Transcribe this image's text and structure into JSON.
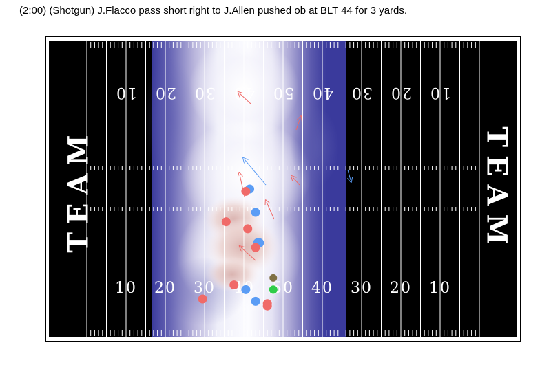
{
  "play_description": "(2:00) (Shotgun) J.Flacco pass short right to J.Allen pushed ob at BLT 44 for 3 yards.",
  "field": {
    "endzone_left_text": "TEAM",
    "endzone_right_text": "TEAM",
    "bottom_yard_numbers": [
      "10",
      "20",
      "30",
      "40",
      "50",
      "40",
      "30",
      "20",
      "10"
    ],
    "top_yard_numbers": [
      "10",
      "20",
      "30",
      "40",
      "50",
      "40",
      "30",
      "20",
      "10"
    ],
    "colors": {
      "turf": "#000000",
      "lines": "#ffffff",
      "heat_low": "#3a3a9c",
      "heat_mid": "#b7b3da",
      "heat_high": "#fcfcff",
      "heat_peak": "#e7c6c2",
      "offense": "#f06a68",
      "defense": "#5a9cf5",
      "ball": "#2fcc49",
      "official": "#7f7044"
    }
  },
  "players": {
    "offense": [
      {
        "yard_line": 29.5,
        "lateral": 47
      },
      {
        "yard_line": 37.5,
        "lateral": 41
      },
      {
        "yard_line": 46,
        "lateral": 50
      },
      {
        "yard_line": 46,
        "lateral": 49
      },
      {
        "yard_line": 43,
        "lateral": 25
      },
      {
        "yard_line": 41,
        "lateral": 17
      },
      {
        "yard_line": 35.5,
        "lateral": 14
      },
      {
        "yard_line": 40.5,
        "lateral": 1
      }
    ],
    "defense": [
      {
        "yard_line": 41.5,
        "lateral": 0
      },
      {
        "yard_line": 43.5,
        "lateral": 23
      },
      {
        "yard_line": 44,
        "lateral": 23
      },
      {
        "yard_line": 40.5,
        "lateral": 43
      },
      {
        "yard_line": 43,
        "lateral": 48
      },
      {
        "yard_line": 43,
        "lateral": 10
      }
    ],
    "ball": {
      "yard_line": 47.5,
      "lateral": 43
    }
  }
}
